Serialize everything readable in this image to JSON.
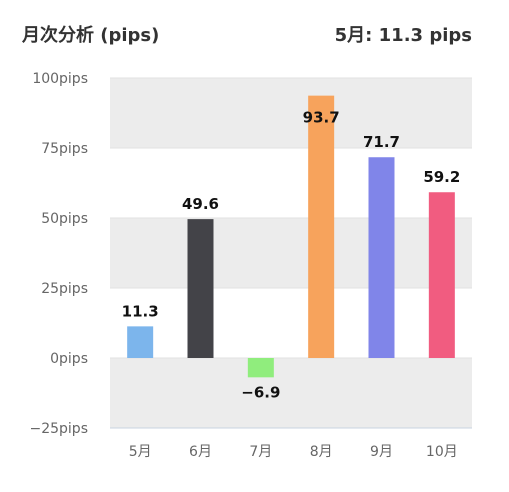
{
  "header": {
    "title": "月次分析 (pips)",
    "summary_month": "5月:",
    "summary_value": "11.3 pips"
  },
  "chart_data": {
    "type": "bar",
    "categories": [
      "5月",
      "6月",
      "7月",
      "8月",
      "9月",
      "10月"
    ],
    "values": [
      11.3,
      49.6,
      -6.9,
      93.7,
      71.7,
      59.2
    ],
    "value_labels": [
      "11.3",
      "49.6",
      "−6.9",
      "93.7",
      "71.7",
      "59.2"
    ],
    "colors": [
      "#7cb5ec",
      "#434348",
      "#90ed7d",
      "#f7a35c",
      "#8085e9",
      "#f15c80"
    ],
    "yticks": [
      -25,
      0,
      25,
      50,
      75,
      100
    ],
    "ytick_labels": [
      "−25pips",
      "0pips",
      "25pips",
      "50pips",
      "75pips",
      "100pips"
    ],
    "ylim": [
      -25,
      100
    ],
    "grid": true,
    "band_color": "#ececec",
    "title": "月次分析 (pips)",
    "xlabel": "",
    "ylabel": ""
  }
}
